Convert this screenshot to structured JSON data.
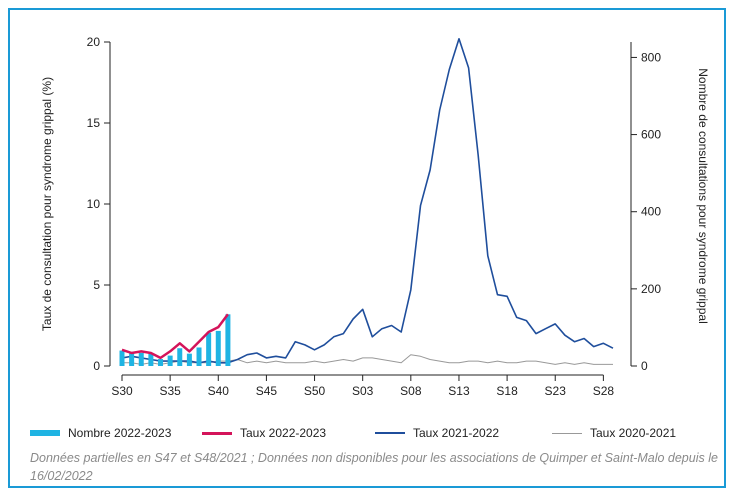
{
  "colors": {
    "border": "#1a9ad6",
    "nombre_2022_2023": "#1fb4e3",
    "taux_2022_2023": "#d4145a",
    "taux_2021_2022": "#1f4e9c",
    "taux_2020_2021": "#999999"
  },
  "legend": {
    "nombre_2022_2023": "Nombre 2022-2023",
    "taux_2022_2023": "Taux 2022-2023",
    "taux_2021_2022": "Taux 2021-2022",
    "taux_2020_2021": "Taux 2020-2021"
  },
  "note": "Données partielles en S47 et S48/2021 ; Données non disponibles pour les associations de Quimper et Saint-Malo depuis le 16/02/2022",
  "chart_data": {
    "type": "line",
    "ylabel_left": "Taux de consultation pour syndrome grippal (%)",
    "ylabel_right": "Nombre de consultations pour syndrome grippal",
    "ylim_left": [
      0,
      20
    ],
    "ylim_right": [
      0,
      840
    ],
    "yticks_left": [
      "0",
      "5",
      "10",
      "15",
      "20"
    ],
    "yticks_right": [
      "0",
      "200",
      "400",
      "600",
      "800"
    ],
    "x_tick_labels": [
      "S30",
      "S35",
      "S40",
      "S45",
      "S50",
      "S03",
      "S08",
      "S13",
      "S18",
      "S23",
      "S28"
    ],
    "x_tick_positions": [
      0,
      5,
      10,
      15,
      20,
      25,
      30,
      35,
      40,
      45,
      50
    ],
    "x_weeks": [
      "S30",
      "S31",
      "S32",
      "S33",
      "S34",
      "S35",
      "S36",
      "S37",
      "S38",
      "S39",
      "S40",
      "S41",
      "S42",
      "S43",
      "S44",
      "S45",
      "S46",
      "S47",
      "S48",
      "S49",
      "S50",
      "S51",
      "S52",
      "S01",
      "S02",
      "S03",
      "S04",
      "S05",
      "S06",
      "S07",
      "S08",
      "S09",
      "S10",
      "S11",
      "S12",
      "S13",
      "S14",
      "S15",
      "S16",
      "S17",
      "S18",
      "S19",
      "S20",
      "S21",
      "S22",
      "S23",
      "S24",
      "S25",
      "S26",
      "S27",
      "S28",
      "S29"
    ],
    "grid": false,
    "legend_position": "bottom",
    "series": [
      {
        "name": "Nombre 2022-2023",
        "type": "bar",
        "axis": "right",
        "values": [
          40,
          37,
          34,
          32,
          18,
          27,
          46,
          32,
          48,
          86,
          91,
          134
        ]
      },
      {
        "name": "Taux 2022-2023",
        "type": "line",
        "axis": "left",
        "values": [
          1.0,
          0.8,
          0.9,
          0.8,
          0.5,
          0.9,
          1.4,
          0.9,
          1.5,
          2.1,
          2.4,
          3.2
        ]
      },
      {
        "name": "Taux 2021-2022",
        "type": "line",
        "axis": "left",
        "values": [
          0.5,
          0.6,
          0.5,
          0.4,
          0.3,
          0.3,
          0.3,
          0.3,
          0.2,
          0.3,
          0.2,
          0.2,
          0.4,
          0.7,
          0.8,
          0.5,
          0.6,
          0.5,
          1.5,
          1.3,
          1.0,
          1.3,
          1.8,
          2.0,
          2.9,
          3.5,
          1.8,
          2.3,
          2.5,
          2.1,
          4.7,
          9.9,
          12.1,
          15.8,
          18.3,
          20.2,
          18.4,
          13.0,
          6.8,
          4.4,
          4.3,
          3.0,
          2.8,
          2.0,
          2.3,
          2.6,
          1.9,
          1.5,
          1.7,
          1.2,
          1.4,
          1.1
        ]
      },
      {
        "name": "Taux 2020-2021",
        "type": "line",
        "axis": "left",
        "values": [
          0.2,
          0.2,
          0.1,
          0.2,
          0.1,
          0.2,
          0.3,
          0.2,
          0.2,
          0.2,
          0.3,
          0.3,
          0.4,
          0.2,
          0.3,
          0.2,
          0.3,
          0.2,
          0.2,
          0.2,
          0.3,
          0.2,
          0.3,
          0.4,
          0.3,
          0.5,
          0.5,
          0.4,
          0.3,
          0.2,
          0.7,
          0.6,
          0.4,
          0.3,
          0.2,
          0.2,
          0.3,
          0.3,
          0.2,
          0.3,
          0.2,
          0.2,
          0.3,
          0.3,
          0.2,
          0.1,
          0.2,
          0.1,
          0.2,
          0.1,
          0.1,
          0.1
        ]
      }
    ]
  }
}
